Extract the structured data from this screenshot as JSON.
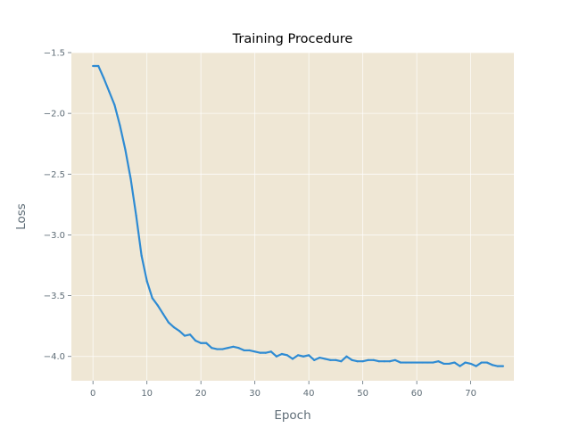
{
  "chart_data": {
    "type": "line",
    "title": "Training Procedure",
    "xlabel": "Epoch",
    "ylabel": "Loss",
    "xlim": [
      -4,
      78
    ],
    "ylim": [
      -4.2,
      -1.5
    ],
    "xticks": [
      0,
      10,
      20,
      30,
      40,
      50,
      60,
      70
    ],
    "yticks": [
      -1.5,
      -2.0,
      -2.5,
      -3.0,
      -3.5,
      -4.0
    ],
    "ytick_labels": [
      "−1.5",
      "−2.0",
      "−2.5",
      "−3.0",
      "−3.5",
      "−4.0"
    ],
    "grid": true,
    "colors": {
      "background": "#efe7d5",
      "line": "#2e8bd3"
    },
    "series": [
      {
        "x": [
          0,
          1,
          2,
          3,
          4,
          5,
          6,
          7,
          8,
          9,
          10,
          11,
          12,
          13,
          14,
          15,
          16,
          17,
          18,
          19,
          20,
          21,
          22,
          23,
          24,
          25,
          26,
          27,
          28,
          29,
          30,
          31,
          32,
          33,
          34,
          35,
          36,
          37,
          38,
          39,
          40,
          41,
          42,
          43,
          44,
          45,
          46,
          47,
          48,
          49,
          50,
          51,
          52,
          53,
          54,
          55,
          56,
          57,
          58,
          59,
          60,
          61,
          62,
          63,
          64,
          65,
          66,
          67,
          68,
          69,
          70,
          71,
          72,
          73,
          74,
          75,
          76
        ],
        "values": [
          -1.61,
          -1.61,
          -1.71,
          -1.82,
          -1.93,
          -2.1,
          -2.3,
          -2.54,
          -2.84,
          -3.17,
          -3.38,
          -3.52,
          -3.58,
          -3.65,
          -3.72,
          -3.76,
          -3.79,
          -3.83,
          -3.82,
          -3.87,
          -3.89,
          -3.89,
          -3.93,
          -3.94,
          -3.94,
          -3.93,
          -3.92,
          -3.93,
          -3.95,
          -3.95,
          -3.96,
          -3.97,
          -3.97,
          -3.96,
          -4.0,
          -3.98,
          -3.99,
          -4.02,
          -3.99,
          -4.0,
          -3.99,
          -4.03,
          -4.01,
          -4.02,
          -4.03,
          -4.03,
          -4.04,
          -4.0,
          -4.03,
          -4.04,
          -4.04,
          -4.03,
          -4.03,
          -4.04,
          -4.04,
          -4.04,
          -4.03,
          -4.05,
          -4.05,
          -4.05,
          -4.05,
          -4.05,
          -4.05,
          -4.05,
          -4.04,
          -4.06,
          -4.06,
          -4.05,
          -4.08,
          -4.05,
          -4.06,
          -4.08,
          -4.05,
          -4.05,
          -4.07,
          -4.08,
          -4.08
        ]
      }
    ]
  }
}
